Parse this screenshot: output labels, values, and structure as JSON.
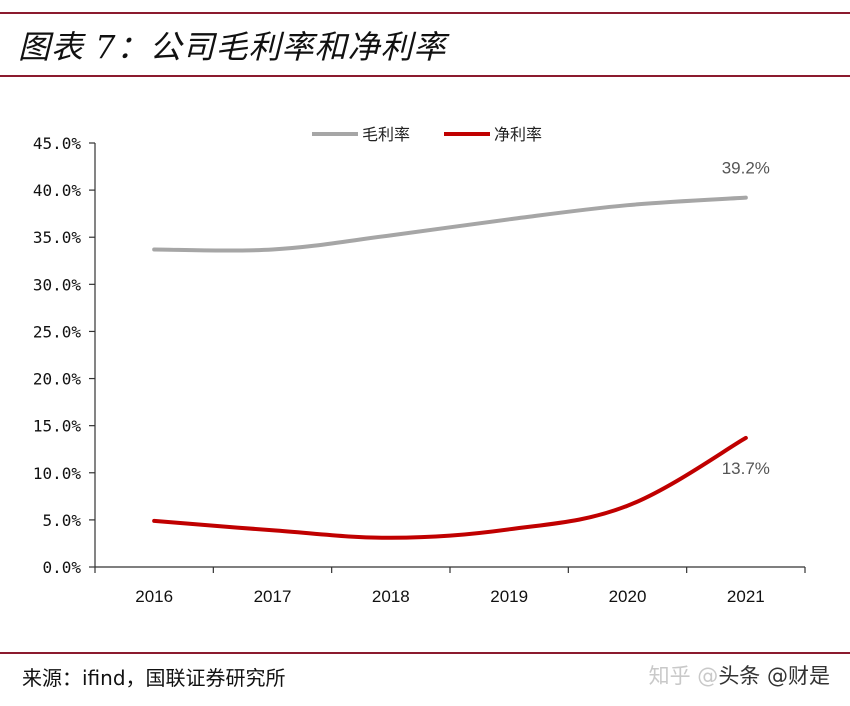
{
  "header": {
    "title": "图表 7：公司毛利率和净利率"
  },
  "footer": {
    "source": "来源：ifind，国联证券研究所",
    "watermark_light": "知乎 @",
    "watermark_dark": "头条 @财是"
  },
  "chart_data": {
    "type": "line",
    "title": "",
    "xlabel": "",
    "ylabel": "",
    "categories": [
      "2016",
      "2017",
      "2018",
      "2019",
      "2020",
      "2021"
    ],
    "ylim": [
      0,
      45
    ],
    "ytick_labels": [
      "0.0%",
      "5.0%",
      "10.0%",
      "15.0%",
      "20.0%",
      "25.0%",
      "30.0%",
      "35.0%",
      "40.0%",
      "45.0%"
    ],
    "ytick_values": [
      0,
      5,
      10,
      15,
      20,
      25,
      30,
      35,
      40,
      45
    ],
    "grid": false,
    "legend_position": "top-center",
    "series": [
      {
        "name": "毛利率",
        "color": "#a6a6a6",
        "values": [
          33.7,
          33.7,
          35.2,
          36.9,
          38.4,
          39.2
        ],
        "end_label": "39.2%"
      },
      {
        "name": "净利率",
        "color": "#c00000",
        "values": [
          4.9,
          3.9,
          3.1,
          4.0,
          6.5,
          13.7
        ],
        "end_label": "13.7%"
      }
    ]
  }
}
